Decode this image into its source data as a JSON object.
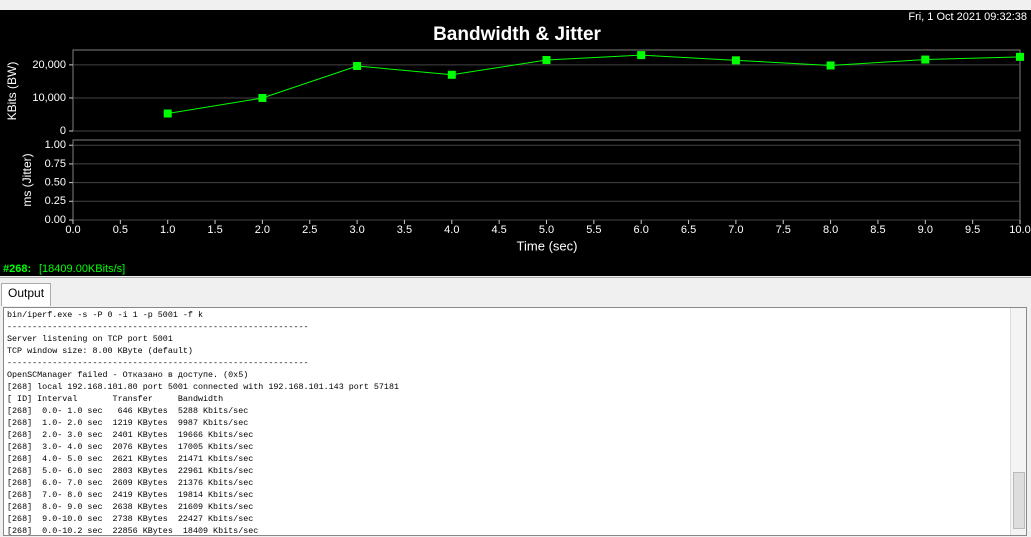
{
  "header": {
    "timestamp": "Fri, 1 Oct 2021 09:32:38"
  },
  "chart_data": [
    {
      "type": "line",
      "title": "Bandwidth & Jitter",
      "ylabel": "KBits (BW)",
      "x": [
        1,
        2,
        3,
        4,
        5,
        6,
        7,
        8,
        9,
        10
      ],
      "values": [
        5288,
        9987,
        19666,
        17005,
        21471,
        22961,
        21376,
        19814,
        21609,
        22427
      ],
      "color": "#00ff00",
      "xlim": [
        0,
        10
      ],
      "ylim": [
        0,
        24500
      ],
      "yticks": [
        0,
        {
          "value": 10000,
          "label": "10,000"
        },
        {
          "value": 20000,
          "label": "20,000"
        }
      ]
    },
    {
      "type": "line",
      "ylabel": "ms (Jitter)",
      "xlabel": "Time (sec)",
      "xlim": [
        0,
        10
      ],
      "ylim": [
        0,
        1.07
      ],
      "yticks": [
        {
          "value": 0,
          "label": "0.00"
        },
        {
          "value": 0.25,
          "label": "0.25"
        },
        {
          "value": 0.5,
          "label": "0.50"
        },
        {
          "value": 0.75,
          "label": "0.75"
        },
        {
          "value": 1,
          "label": "1.00"
        }
      ],
      "xticks": [
        {
          "value": 0,
          "label": "0.0"
        },
        {
          "value": 0.5,
          "label": "0.5"
        },
        {
          "value": 1,
          "label": "1.0"
        },
        {
          "value": 1.5,
          "label": "1.5"
        },
        {
          "value": 2,
          "label": "2.0"
        },
        {
          "value": 2.5,
          "label": "2.5"
        },
        {
          "value": 3,
          "label": "3.0"
        },
        {
          "value": 3.5,
          "label": "3.5"
        },
        {
          "value": 4,
          "label": "4.0"
        },
        {
          "value": 4.5,
          "label": "4.5"
        },
        {
          "value": 5,
          "label": "5.0"
        },
        {
          "value": 5.5,
          "label": "5.5"
        },
        {
          "value": 6,
          "label": "6.0"
        },
        {
          "value": 6.5,
          "label": "6.5"
        },
        {
          "value": 7,
          "label": "7.0"
        },
        {
          "value": 7.5,
          "label": "7.5"
        },
        {
          "value": 8,
          "label": "8.0"
        },
        {
          "value": 8.5,
          "label": "8.5"
        },
        {
          "value": 9,
          "label": "9.0"
        },
        {
          "value": 9.5,
          "label": "9.5"
        },
        {
          "value": 10,
          "label": "10.0"
        }
      ]
    }
  ],
  "status": {
    "connection": "#268:",
    "rate": "[18409.00KBits/s]"
  },
  "output": {
    "tab": "Output",
    "lines": [
      "bin/iperf.exe -s -P 0 -i 1 -p 5001 -f k",
      "------------------------------------------------------------",
      "Server listening on TCP port 5001",
      "TCP window size: 8.00 KByte (default)",
      "------------------------------------------------------------",
      "OpenSCManager failed - Отказано в доступе. (0x5)",
      "[268] local 192.168.101.80 port 5001 connected with 192.168.101.143 port 57181",
      "[ ID] Interval       Transfer     Bandwidth",
      "[268]  0.0- 1.0 sec   646 KBytes  5288 Kbits/sec",
      "[268]  1.0- 2.0 sec  1219 KBytes  9987 Kbits/sec",
      "[268]  2.0- 3.0 sec  2401 KBytes  19666 Kbits/sec",
      "[268]  3.0- 4.0 sec  2076 KBytes  17005 Kbits/sec",
      "[268]  4.0- 5.0 sec  2621 KBytes  21471 Kbits/sec",
      "[268]  5.0- 6.0 sec  2803 KBytes  22961 Kbits/sec",
      "[268]  6.0- 7.0 sec  2609 KBytes  21376 Kbits/sec",
      "[268]  7.0- 8.0 sec  2419 KBytes  19814 Kbits/sec",
      "[268]  8.0- 9.0 sec  2638 KBytes  21609 Kbits/sec",
      "[268]  9.0-10.0 sec  2738 KBytes  22427 Kbits/sec",
      "[268]  0.0-10.2 sec  22856 KBytes  18409 Kbits/sec"
    ]
  }
}
